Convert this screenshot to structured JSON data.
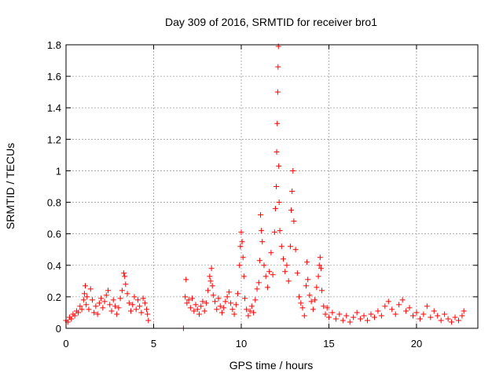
{
  "chart_data": {
    "type": "scatter",
    "title": "Day 309 of 2016, SRMTID for receiver bro1",
    "xlabel": "GPS time / hours",
    "ylabel": "SRMTID / TECUs",
    "xlim": [
      0,
      23.5
    ],
    "ylim": [
      0,
      1.8
    ],
    "x_ticks": [
      0,
      5,
      10,
      15,
      20
    ],
    "y_ticks": [
      0,
      0.2,
      0.4,
      0.6,
      0.8,
      1,
      1.2,
      1.4,
      1.6,
      1.8
    ],
    "x_tick_labels": [
      "0",
      "5",
      "10",
      "15",
      "20"
    ],
    "y_tick_labels": [
      "0",
      "0.2",
      "0.4",
      "0.6",
      "0.8",
      "1",
      "1.2",
      "1.4",
      "1.6",
      "1.8"
    ],
    "grid": true,
    "marker": "+",
    "color": "#ff0000",
    "series": [
      {
        "name": "bro1",
        "points": [
          [
            0.0,
            0.05
          ],
          [
            0.1,
            0.04
          ],
          [
            0.2,
            0.07
          ],
          [
            0.3,
            0.06
          ],
          [
            0.4,
            0.09
          ],
          [
            0.5,
            0.08
          ],
          [
            0.6,
            0.11
          ],
          [
            0.7,
            0.1
          ],
          [
            0.8,
            0.14
          ],
          [
            0.9,
            0.12
          ],
          [
            1.0,
            0.18
          ],
          [
            1.05,
            0.22
          ],
          [
            1.1,
            0.27
          ],
          [
            1.15,
            0.15
          ],
          [
            1.2,
            0.2
          ],
          [
            1.3,
            0.12
          ],
          [
            1.4,
            0.25
          ],
          [
            1.5,
            0.18
          ],
          [
            1.6,
            0.1
          ],
          [
            1.7,
            0.14
          ],
          [
            1.8,
            0.09
          ],
          [
            1.9,
            0.16
          ],
          [
            2.0,
            0.19
          ],
          [
            2.1,
            0.13
          ],
          [
            2.2,
            0.17
          ],
          [
            2.3,
            0.21
          ],
          [
            2.4,
            0.24
          ],
          [
            2.5,
            0.15
          ],
          [
            2.6,
            0.11
          ],
          [
            2.7,
            0.18
          ],
          [
            2.8,
            0.14
          ],
          [
            2.9,
            0.09
          ],
          [
            3.0,
            0.13
          ],
          [
            3.1,
            0.19
          ],
          [
            3.2,
            0.24
          ],
          [
            3.3,
            0.35
          ],
          [
            3.35,
            0.33
          ],
          [
            3.4,
            0.28
          ],
          [
            3.5,
            0.22
          ],
          [
            3.6,
            0.16
          ],
          [
            3.7,
            0.11
          ],
          [
            3.8,
            0.15
          ],
          [
            3.9,
            0.2
          ],
          [
            4.0,
            0.12
          ],
          [
            4.1,
            0.18
          ],
          [
            4.2,
            0.14
          ],
          [
            4.3,
            0.1
          ],
          [
            4.4,
            0.19
          ],
          [
            4.5,
            0.16
          ],
          [
            4.6,
            0.12
          ],
          [
            4.65,
            0.09
          ],
          [
            4.7,
            0.05
          ],
          [
            6.7,
            0.0
          ],
          [
            6.8,
            0.2
          ],
          [
            6.85,
            0.31
          ],
          [
            6.9,
            0.16
          ],
          [
            7.0,
            0.18
          ],
          [
            7.1,
            0.13
          ],
          [
            7.2,
            0.19
          ],
          [
            7.3,
            0.11
          ],
          [
            7.4,
            0.15
          ],
          [
            7.5,
            0.12
          ],
          [
            7.6,
            0.09
          ],
          [
            7.7,
            0.14
          ],
          [
            7.8,
            0.17
          ],
          [
            7.9,
            0.11
          ],
          [
            8.0,
            0.16
          ],
          [
            8.1,
            0.24
          ],
          [
            8.2,
            0.33
          ],
          [
            8.25,
            0.3
          ],
          [
            8.3,
            0.38
          ],
          [
            8.35,
            0.27
          ],
          [
            8.4,
            0.21
          ],
          [
            8.5,
            0.17
          ],
          [
            8.6,
            0.12
          ],
          [
            8.7,
            0.19
          ],
          [
            8.8,
            0.14
          ],
          [
            8.9,
            0.1
          ],
          [
            9.0,
            0.13
          ],
          [
            9.1,
            0.17
          ],
          [
            9.2,
            0.2
          ],
          [
            9.3,
            0.23
          ],
          [
            9.4,
            0.16
          ],
          [
            9.5,
            0.12
          ],
          [
            9.6,
            0.09
          ],
          [
            9.7,
            0.15
          ],
          [
            9.8,
            0.22
          ],
          [
            9.9,
            0.4
          ],
          [
            9.95,
            0.52
          ],
          [
            10.0,
            0.61
          ],
          [
            10.05,
            0.55
          ],
          [
            10.1,
            0.45
          ],
          [
            10.15,
            0.33
          ],
          [
            10.2,
            0.19
          ],
          [
            10.3,
            0.12
          ],
          [
            10.4,
            0.08
          ],
          [
            10.5,
            0.11
          ],
          [
            10.6,
            0.14
          ],
          [
            10.7,
            0.1
          ],
          [
            10.8,
            0.18
          ],
          [
            10.9,
            0.25
          ],
          [
            11.0,
            0.29
          ],
          [
            11.05,
            0.43
          ],
          [
            11.1,
            0.72
          ],
          [
            11.15,
            0.62
          ],
          [
            11.2,
            0.55
          ],
          [
            11.3,
            0.4
          ],
          [
            11.4,
            0.33
          ],
          [
            11.5,
            0.26
          ],
          [
            11.6,
            0.36
          ],
          [
            11.7,
            0.48
          ],
          [
            11.8,
            0.34
          ],
          [
            11.9,
            0.61
          ],
          [
            11.95,
            0.76
          ],
          [
            12.0,
            0.9
          ],
          [
            12.02,
            1.12
          ],
          [
            12.05,
            1.3
          ],
          [
            12.08,
            1.5
          ],
          [
            12.1,
            1.66
          ],
          [
            12.12,
            1.79
          ],
          [
            12.14,
            1.03
          ],
          [
            12.16,
            0.8
          ],
          [
            12.2,
            0.62
          ],
          [
            12.3,
            0.52
          ],
          [
            12.4,
            0.44
          ],
          [
            12.5,
            0.36
          ],
          [
            12.6,
            0.4
          ],
          [
            12.7,
            0.3
          ],
          [
            12.8,
            0.52
          ],
          [
            12.85,
            0.75
          ],
          [
            12.9,
            0.87
          ],
          [
            12.95,
            1.0
          ],
          [
            13.0,
            0.68
          ],
          [
            13.1,
            0.5
          ],
          [
            13.2,
            0.35
          ],
          [
            13.3,
            0.2
          ],
          [
            13.4,
            0.16
          ],
          [
            13.5,
            0.13
          ],
          [
            13.6,
            0.08
          ],
          [
            13.7,
            0.27
          ],
          [
            13.75,
            0.42
          ],
          [
            13.8,
            0.31
          ],
          [
            13.9,
            0.21
          ],
          [
            14.0,
            0.17
          ],
          [
            14.1,
            0.12
          ],
          [
            14.2,
            0.18
          ],
          [
            14.3,
            0.26
          ],
          [
            14.4,
            0.33
          ],
          [
            14.45,
            0.4
          ],
          [
            14.5,
            0.45
          ],
          [
            14.55,
            0.38
          ],
          [
            14.6,
            0.24
          ],
          [
            14.7,
            0.14
          ],
          [
            14.8,
            0.09
          ],
          [
            14.9,
            0.13
          ],
          [
            15.0,
            0.07
          ],
          [
            15.2,
            0.1
          ],
          [
            15.4,
            0.06
          ],
          [
            15.6,
            0.09
          ],
          [
            15.8,
            0.05
          ],
          [
            16.0,
            0.08
          ],
          [
            16.2,
            0.04
          ],
          [
            16.4,
            0.07
          ],
          [
            16.6,
            0.1
          ],
          [
            16.8,
            0.06
          ],
          [
            17.0,
            0.08
          ],
          [
            17.2,
            0.05
          ],
          [
            17.4,
            0.09
          ],
          [
            17.6,
            0.07
          ],
          [
            17.8,
            0.11
          ],
          [
            18.0,
            0.08
          ],
          [
            18.2,
            0.14
          ],
          [
            18.4,
            0.17
          ],
          [
            18.6,
            0.12
          ],
          [
            18.8,
            0.09
          ],
          [
            19.0,
            0.15
          ],
          [
            19.2,
            0.18
          ],
          [
            19.4,
            0.11
          ],
          [
            19.6,
            0.13
          ],
          [
            19.8,
            0.08
          ],
          [
            20.0,
            0.1
          ],
          [
            20.2,
            0.06
          ],
          [
            20.4,
            0.09
          ],
          [
            20.6,
            0.14
          ],
          [
            20.8,
            0.07
          ],
          [
            21.0,
            0.11
          ],
          [
            21.2,
            0.08
          ],
          [
            21.4,
            0.05
          ],
          [
            21.6,
            0.09
          ],
          [
            21.8,
            0.06
          ],
          [
            22.0,
            0.04
          ],
          [
            22.2,
            0.07
          ],
          [
            22.4,
            0.05
          ],
          [
            22.6,
            0.08
          ],
          [
            22.7,
            0.11
          ]
        ]
      }
    ]
  }
}
